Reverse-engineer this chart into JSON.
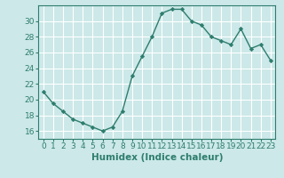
{
  "x": [
    0,
    1,
    2,
    3,
    4,
    5,
    6,
    7,
    8,
    9,
    10,
    11,
    12,
    13,
    14,
    15,
    16,
    17,
    18,
    19,
    20,
    21,
    22,
    23
  ],
  "y": [
    21,
    19.5,
    18.5,
    17.5,
    17,
    16.5,
    16,
    16.5,
    18.5,
    23,
    25.5,
    28,
    31,
    31.5,
    31.5,
    30,
    29.5,
    28,
    27.5,
    27,
    29,
    26.5,
    27,
    25
  ],
  "line_color": "#2e7d6e",
  "marker": "D",
  "marker_size": 2.2,
  "bg_color": "#cce8e8",
  "grid_color": "#ffffff",
  "xlabel": "Humidex (Indice chaleur)",
  "ylim": [
    15,
    32
  ],
  "yticks": [
    16,
    18,
    20,
    22,
    24,
    26,
    28,
    30
  ],
  "xlim": [
    -0.5,
    23.5
  ],
  "tick_color": "#2e7d6e",
  "label_color": "#2e7d6e",
  "xlabel_fontsize": 7.5,
  "tick_fontsize": 6.5,
  "linewidth": 1.0
}
